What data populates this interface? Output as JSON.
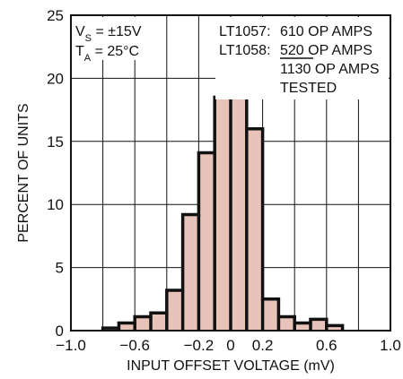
{
  "chart_data": {
    "type": "bar",
    "xlabel": "INPUT OFFSET VOLTAGE (mV)",
    "ylabel": "PERCENT OF UNITS",
    "xlim": [
      -1.0,
      1.0
    ],
    "ylim": [
      0,
      25
    ],
    "grid": true,
    "x_ticks": [
      {
        "value": -1.0,
        "label": "−1.0"
      },
      {
        "value": -0.6,
        "label": "−0.6"
      },
      {
        "value": -0.2,
        "label": "−0.2"
      },
      {
        "value": 0,
        "label": "0"
      },
      {
        "value": 0.2,
        "label": "0.2"
      },
      {
        "value": 0.6,
        "label": "0.6"
      },
      {
        "value": 1.0,
        "label": "1.0"
      }
    ],
    "y_ticks": [
      {
        "value": 0,
        "label": "0"
      },
      {
        "value": 5,
        "label": "5"
      },
      {
        "value": 10,
        "label": "10"
      },
      {
        "value": 15,
        "label": "15"
      },
      {
        "value": 20,
        "label": "20"
      },
      {
        "value": 25,
        "label": "25"
      }
    ],
    "bin_width": 0.1,
    "bin_edges_start": -0.8,
    "values": [
      0.2,
      0.6,
      1.1,
      1.4,
      3.2,
      9.2,
      14.1,
      18.5,
      21.2,
      16.0,
      2.5,
      1.1,
      0.6,
      0.9,
      0.4
    ],
    "colors": {
      "fill": "#e8c3b9",
      "outline": "#111111",
      "grid": "#111111"
    }
  },
  "conditions": {
    "line1_main": "V",
    "line1_sub": "S",
    "line1_rest": " = ±15V",
    "line2_main": "T",
    "line2_sub": "A",
    "line2_rest": " = 25°C"
  },
  "counts": {
    "row1_label": "LT1057:",
    "row1_value": "610 OP AMPS",
    "row2_label": "LT1058:",
    "row2_value": "520 OP AMPS",
    "row3_value": "1130 OP AMPS",
    "row4_value": "TESTED"
  }
}
